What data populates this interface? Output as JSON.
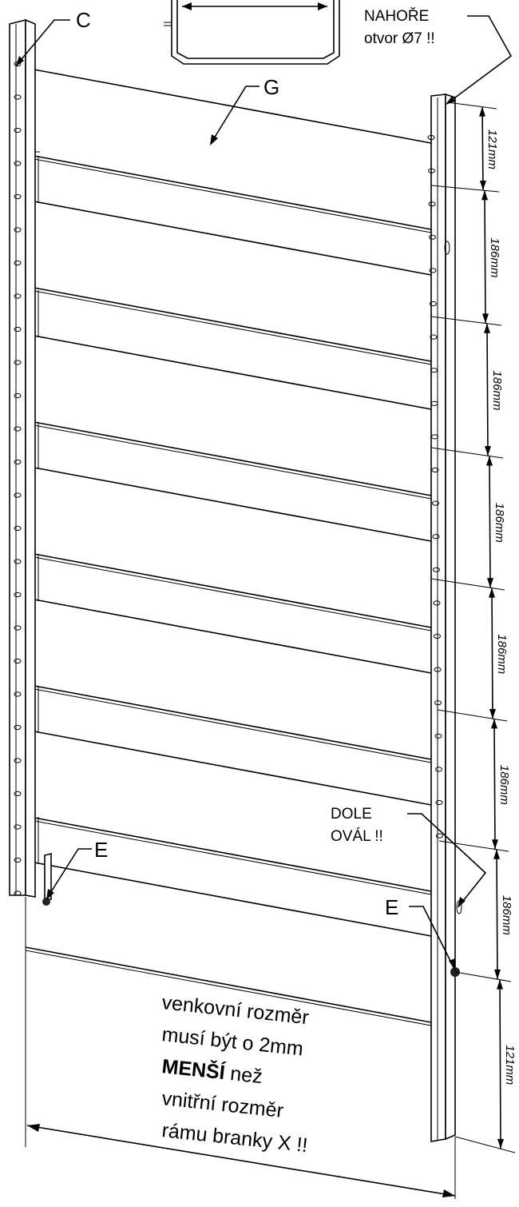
{
  "labels": {
    "c": "C",
    "g": "G",
    "e_left": "E",
    "e_right": "E",
    "top_note_line1": "NAHOŘE",
    "top_note_line2": "otvor Ø7 !!",
    "bottom_note_line1": "DOLE",
    "bottom_note_line2": "OVÁL !!"
  },
  "dimensions": [
    "121mm",
    "186mm",
    "186mm",
    "186mm",
    "186mm",
    "186mm",
    "186mm",
    "121mm"
  ],
  "main_note": {
    "line1": "venkovní rozměr",
    "line2": "musí být o 2mm",
    "line3_bold": "MENŠÍ",
    "line3_rest": " než",
    "line4": "vnitřní rozměr",
    "line5": "rámu branky X !!"
  }
}
